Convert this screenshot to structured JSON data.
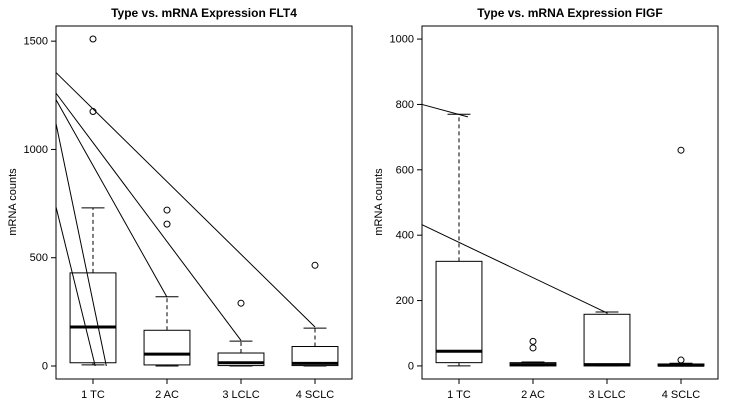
{
  "figure": {
    "background": "#ffffff",
    "ink_color": "#000000"
  },
  "chart_data": [
    {
      "type": "boxplot",
      "title": "Type vs. mRNA Expression FLT4",
      "xlabel": "",
      "ylabel": "mRNA counts",
      "categories": [
        "1 TC",
        "2 AC",
        "3 LCLC",
        "4 SCLC"
      ],
      "xlim": [
        0.5,
        4.5
      ],
      "ylim": [
        -60,
        1570
      ],
      "yticks": [
        0,
        500,
        1000,
        1500
      ],
      "grid": false,
      "boxes": [
        {
          "label": "1 TC",
          "low": 5,
          "q1": 15,
          "median": 180,
          "q3": 430,
          "high": 730,
          "outliers": [
            1510,
            1175
          ]
        },
        {
          "label": "2 AC",
          "low": 0,
          "q1": 5,
          "median": 55,
          "q3": 165,
          "high": 320,
          "outliers": [
            720,
            655
          ]
        },
        {
          "label": "3 LCLC",
          "low": 0,
          "q1": 2,
          "median": 15,
          "q3": 60,
          "high": 115,
          "outliers": [
            290
          ]
        },
        {
          "label": "4 SCLC",
          "low": 0,
          "q1": 2,
          "median": 12,
          "q3": 90,
          "high": 175,
          "outliers": [
            465
          ]
        }
      ],
      "segments": [
        [
          0.5,
          1355,
          4.0,
          180
        ],
        [
          0.5,
          1260,
          3.0,
          118
        ],
        [
          0.5,
          1230,
          2.0,
          318
        ],
        [
          0.5,
          1120,
          1.18,
          0
        ],
        [
          0.5,
          735,
          1.03,
          0
        ]
      ]
    },
    {
      "type": "boxplot",
      "title": "Type vs. mRNA Expression FIGF",
      "xlabel": "",
      "ylabel": "mRNA counts",
      "categories": [
        "1 TC",
        "2 AC",
        "3 LCLC",
        "4 SCLC"
      ],
      "xlim": [
        0.5,
        4.5
      ],
      "ylim": [
        -40,
        1040
      ],
      "yticks": [
        0,
        200,
        400,
        600,
        800,
        1000
      ],
      "grid": false,
      "boxes": [
        {
          "label": "1 TC",
          "low": 0,
          "q1": 10,
          "median": 45,
          "q3": 320,
          "high": 770,
          "outliers": []
        },
        {
          "label": "2 AC",
          "low": 0,
          "q1": 0,
          "median": 4,
          "q3": 10,
          "high": 12,
          "outliers": [
            55,
            75
          ]
        },
        {
          "label": "3 LCLC",
          "low": 0,
          "q1": 0,
          "median": 4,
          "q3": 158,
          "high": 165,
          "outliers": []
        },
        {
          "label": "4 SCLC",
          "low": 0,
          "q1": 0,
          "median": 2,
          "q3": 6,
          "high": 8,
          "outliers": [
            660,
            18
          ]
        }
      ],
      "segments": [
        [
          0.5,
          800,
          1.12,
          762
        ],
        [
          0.5,
          432,
          3.0,
          162
        ]
      ]
    }
  ]
}
